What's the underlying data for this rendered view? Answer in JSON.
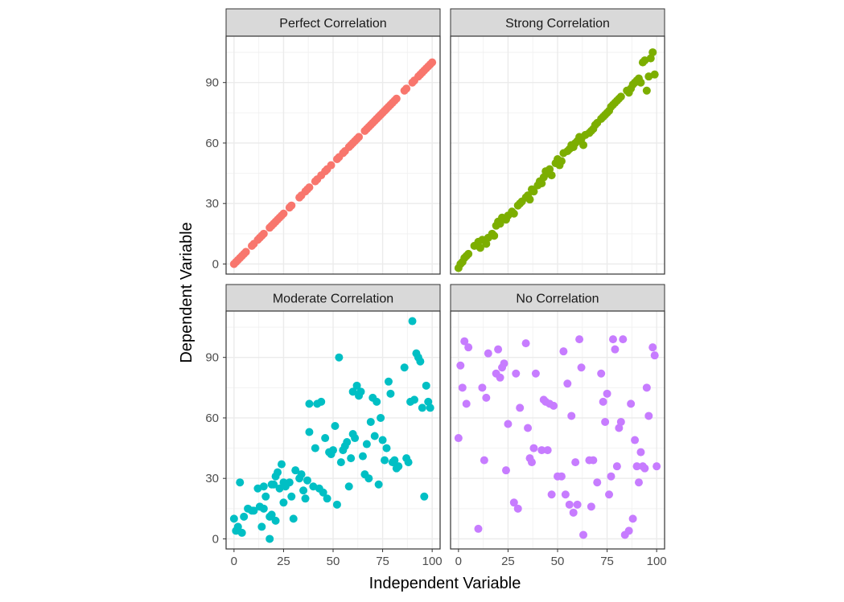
{
  "chart_data": {
    "type": "scatter",
    "facets": [
      "Perfect Correlation",
      "Strong Correlation",
      "Moderate Correlation",
      "No Correlation"
    ],
    "xlabel": "Independent Variable",
    "ylabel": "Dependent Variable",
    "xlim": [
      -4,
      104
    ],
    "ylim": [
      -5,
      113
    ],
    "x_ticks": [
      0,
      25,
      50,
      75,
      100
    ],
    "y_ticks": [
      0,
      30,
      60,
      90
    ],
    "grid": true,
    "legend": "none",
    "series": [
      {
        "facet": "Perfect Correlation",
        "color": "#F8766D",
        "x": [
          0,
          1,
          2,
          3,
          4,
          5,
          6,
          9,
          10,
          12,
          13,
          14,
          15,
          18,
          19,
          20,
          21,
          22,
          23,
          24,
          25,
          28,
          29,
          33,
          34,
          36,
          37,
          38,
          41,
          42,
          44,
          46,
          47,
          49,
          52,
          53,
          55,
          56,
          58,
          59,
          60,
          61,
          62,
          63,
          66,
          67,
          68,
          69,
          70,
          71,
          72,
          73,
          74,
          75,
          76,
          77,
          78,
          79,
          80,
          81,
          82,
          86,
          87,
          90,
          91,
          93,
          94,
          95,
          96,
          97,
          98,
          99,
          100
        ],
        "y": [
          0,
          1,
          2,
          3,
          4,
          5,
          6,
          9,
          10,
          12,
          13,
          14,
          15,
          18,
          19,
          20,
          21,
          22,
          23,
          24,
          25,
          28,
          29,
          33,
          34,
          36,
          37,
          38,
          41,
          42,
          44,
          46,
          47,
          49,
          52,
          53,
          55,
          56,
          58,
          59,
          60,
          61,
          62,
          63,
          66,
          67,
          68,
          69,
          70,
          71,
          72,
          73,
          74,
          75,
          76,
          77,
          78,
          79,
          80,
          81,
          82,
          86,
          87,
          90,
          91,
          93,
          94,
          95,
          96,
          97,
          98,
          99,
          100
        ]
      },
      {
        "facet": "Strong Correlation",
        "color": "#7CAE00",
        "x": [
          0,
          1,
          2,
          3,
          4,
          5,
          8,
          10,
          11,
          12,
          14,
          15,
          17,
          18,
          19,
          20,
          21,
          22,
          24,
          25,
          27,
          28,
          30,
          31,
          32,
          34,
          35,
          36,
          37,
          38,
          40,
          41,
          42,
          43,
          44,
          45,
          46,
          47,
          49,
          50,
          51,
          52,
          53,
          55,
          56,
          57,
          58,
          59,
          60,
          61,
          62,
          63,
          64,
          66,
          67,
          68,
          69,
          70,
          72,
          73,
          74,
          75,
          76,
          77,
          78,
          79,
          80,
          81,
          82,
          85,
          86,
          87,
          88,
          89,
          90,
          91,
          92,
          93,
          94,
          95,
          96,
          97,
          98,
          99
        ],
        "y": [
          -2,
          0,
          1,
          3,
          4,
          5,
          9,
          11,
          8,
          12,
          10,
          13,
          15,
          14,
          19,
          21,
          20,
          23,
          22,
          24,
          26,
          25,
          29,
          30,
          31,
          33,
          34,
          32,
          37,
          36,
          39,
          41,
          40,
          43,
          46,
          45,
          47,
          44,
          50,
          52,
          49,
          51,
          55,
          56,
          57,
          59,
          58,
          60,
          61,
          63,
          62,
          59,
          64,
          65,
          66,
          67,
          69,
          70,
          72,
          73,
          74,
          75,
          76,
          78,
          79,
          80,
          81,
          82,
          83,
          86,
          85,
          87,
          89,
          90,
          91,
          92,
          90,
          100,
          101,
          86,
          93,
          102,
          105,
          94
        ]
      },
      {
        "facet": "Moderate Correlation",
        "color": "#00BFC4",
        "x": [
          0,
          1,
          2,
          3,
          4,
          5,
          7,
          10,
          12,
          13,
          14,
          15,
          16,
          18,
          19,
          20,
          21,
          22,
          23,
          24,
          25,
          28,
          29,
          31,
          34,
          35,
          36,
          37,
          38,
          40,
          41,
          43,
          44,
          45,
          46,
          47,
          48,
          49,
          50,
          51,
          52,
          53,
          54,
          55,
          56,
          57,
          58,
          59,
          60,
          61,
          62,
          63,
          64,
          65,
          66,
          67,
          68,
          69,
          70,
          71,
          72,
          73,
          74,
          75,
          76,
          77,
          78,
          79,
          80,
          81,
          82,
          83,
          86,
          87,
          88,
          89,
          90,
          91,
          92,
          93,
          94,
          95,
          96,
          97,
          98,
          99,
          38,
          42,
          30,
          25,
          33,
          19,
          15,
          9,
          60,
          26,
          21,
          18
        ],
        "y": [
          10,
          4,
          6,
          28,
          3,
          11,
          15,
          14,
          25,
          16,
          6,
          15,
          21,
          0,
          12,
          27,
          31,
          33,
          25,
          37,
          18,
          28,
          21,
          34,
          32,
          24,
          20,
          29,
          67,
          26,
          45,
          25,
          68,
          23,
          50,
          20,
          43,
          42,
          44,
          56,
          17,
          90,
          38,
          44,
          46,
          48,
          26,
          40,
          52,
          50,
          76,
          71,
          73,
          41,
          32,
          47,
          30,
          58,
          70,
          51,
          68,
          27,
          60,
          49,
          39,
          45,
          78,
          72,
          38,
          39,
          35,
          36,
          85,
          40,
          38,
          68,
          108,
          69,
          92,
          90,
          88,
          65,
          21,
          76,
          68,
          65,
          53,
          67,
          10,
          28,
          30,
          27,
          26,
          14,
          73,
          26,
          9,
          11
        ]
      },
      {
        "facet": "No Correlation",
        "color": "#C77CFF",
        "x": [
          0,
          1,
          2,
          3,
          4,
          5,
          10,
          12,
          13,
          14,
          15,
          19,
          20,
          21,
          22,
          23,
          24,
          25,
          28,
          29,
          30,
          31,
          34,
          35,
          36,
          37,
          38,
          39,
          42,
          43,
          44,
          45,
          46,
          47,
          48,
          50,
          52,
          53,
          54,
          55,
          56,
          57,
          58,
          59,
          60,
          61,
          62,
          63,
          66,
          67,
          68,
          70,
          72,
          73,
          74,
          75,
          76,
          77,
          78,
          79,
          80,
          81,
          82,
          83,
          84,
          86,
          87,
          88,
          89,
          90,
          91,
          92,
          93,
          94,
          95,
          96,
          98,
          99,
          100
        ],
        "y": [
          50,
          86,
          75,
          98,
          67,
          95,
          5,
          75,
          39,
          70,
          92,
          82,
          94,
          80,
          85,
          87,
          34,
          57,
          18,
          82,
          15,
          65,
          97,
          55,
          40,
          38,
          45,
          82,
          44,
          69,
          68,
          44,
          67,
          22,
          66,
          31,
          31,
          93,
          22,
          77,
          17,
          61,
          13,
          38,
          17,
          99,
          85,
          2,
          39,
          16,
          39,
          28,
          82,
          68,
          58,
          72,
          22,
          31,
          99,
          94,
          36,
          55,
          58,
          99,
          2,
          4,
          67,
          10,
          49,
          36,
          28,
          43,
          36,
          35,
          75,
          61,
          95,
          91,
          36
        ]
      }
    ]
  }
}
